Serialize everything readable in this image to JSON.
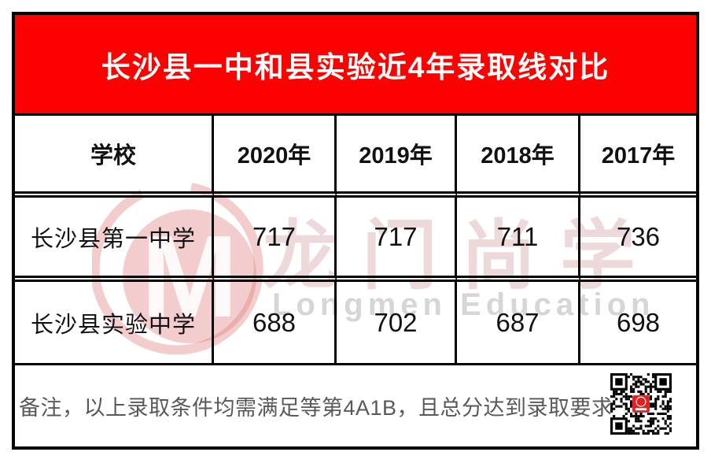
{
  "chart_data": {
    "type": "table",
    "title": "长沙县一中和县实验近4年录取线对比",
    "columns": [
      "学校",
      "2020年",
      "2019年",
      "2018年",
      "2017年"
    ],
    "rows": [
      [
        "长沙县第一中学",
        717,
        717,
        711,
        736
      ],
      [
        "长沙县实验中学",
        688,
        702,
        687,
        698
      ]
    ],
    "note": "备注，以上录取条件均需满足等第4A1B，且总分达到录取要求"
  },
  "watermark": {
    "monogram": "M",
    "cn": "龙门尚学",
    "en": "Longmen Education"
  },
  "colors": {
    "banner_red": "#fc0100",
    "banner_text": "#ffffff",
    "grid_line": "#000000",
    "cell_text": "#111111",
    "note_gray": "#595959",
    "watermark_pink": "#e9b9b9",
    "qr_center_red": "#e02121"
  },
  "icons": {
    "qr": "qr-code",
    "logo": "longmen-logo-icon"
  }
}
